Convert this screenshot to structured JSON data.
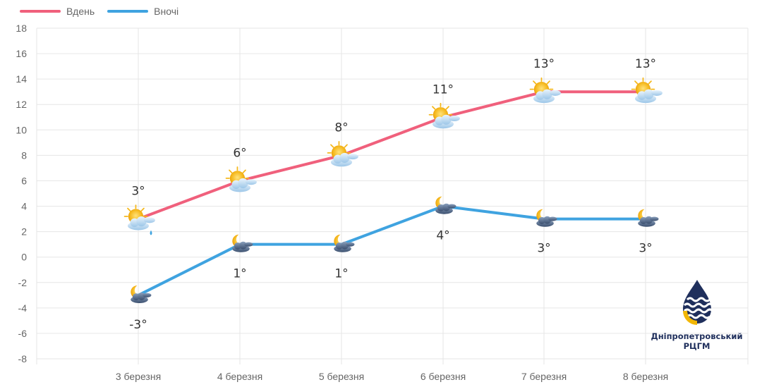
{
  "legend": {
    "day_label": "Вдень",
    "night_label": "Вночі"
  },
  "colors": {
    "day": "#f0607c",
    "night": "#3fa3e0",
    "grid": "#e6e6e6",
    "logo_blue": "#1f2f5c",
    "logo_yellow": "#f2b705"
  },
  "chart_data": {
    "type": "line",
    "categories": [
      "3 березня",
      "4 березня",
      "5 березня",
      "6 березня",
      "7 березня",
      "8 березня"
    ],
    "series": [
      {
        "name": "Вдень",
        "values": [
          3,
          6,
          8,
          11,
          13,
          13
        ],
        "labels": [
          "3°",
          "6°",
          "8°",
          "11°",
          "13°",
          "13°"
        ],
        "icons": [
          "sun-cloud-rain-icon",
          "sun-cloud-icon",
          "sun-cloud-icon",
          "sun-cloud-icon",
          "sun-cloud-icon",
          "sun-cloud-icon"
        ]
      },
      {
        "name": "Вночі",
        "values": [
          -3,
          1,
          1,
          4,
          3,
          3
        ],
        "labels": [
          "-3°",
          "1°",
          "1°",
          "4°",
          "3°",
          "3°"
        ],
        "icons": [
          "moon-cloud-icon",
          "moon-cloud-icon",
          "moon-cloud-icon",
          "moon-cloud-icon",
          "moon-cloud-icon",
          "moon-cloud-icon"
        ]
      }
    ],
    "ylim": [
      -8,
      18
    ],
    "yticks": [
      "18",
      "16",
      "14",
      "12",
      "10",
      "8",
      "6",
      "4",
      "2",
      "0",
      "-2",
      "-4",
      "-6",
      "-8"
    ],
    "grid": true,
    "legend_position": "top-left"
  },
  "logo": {
    "line1": "Дніпропетровський",
    "line2": "РЦГМ"
  }
}
